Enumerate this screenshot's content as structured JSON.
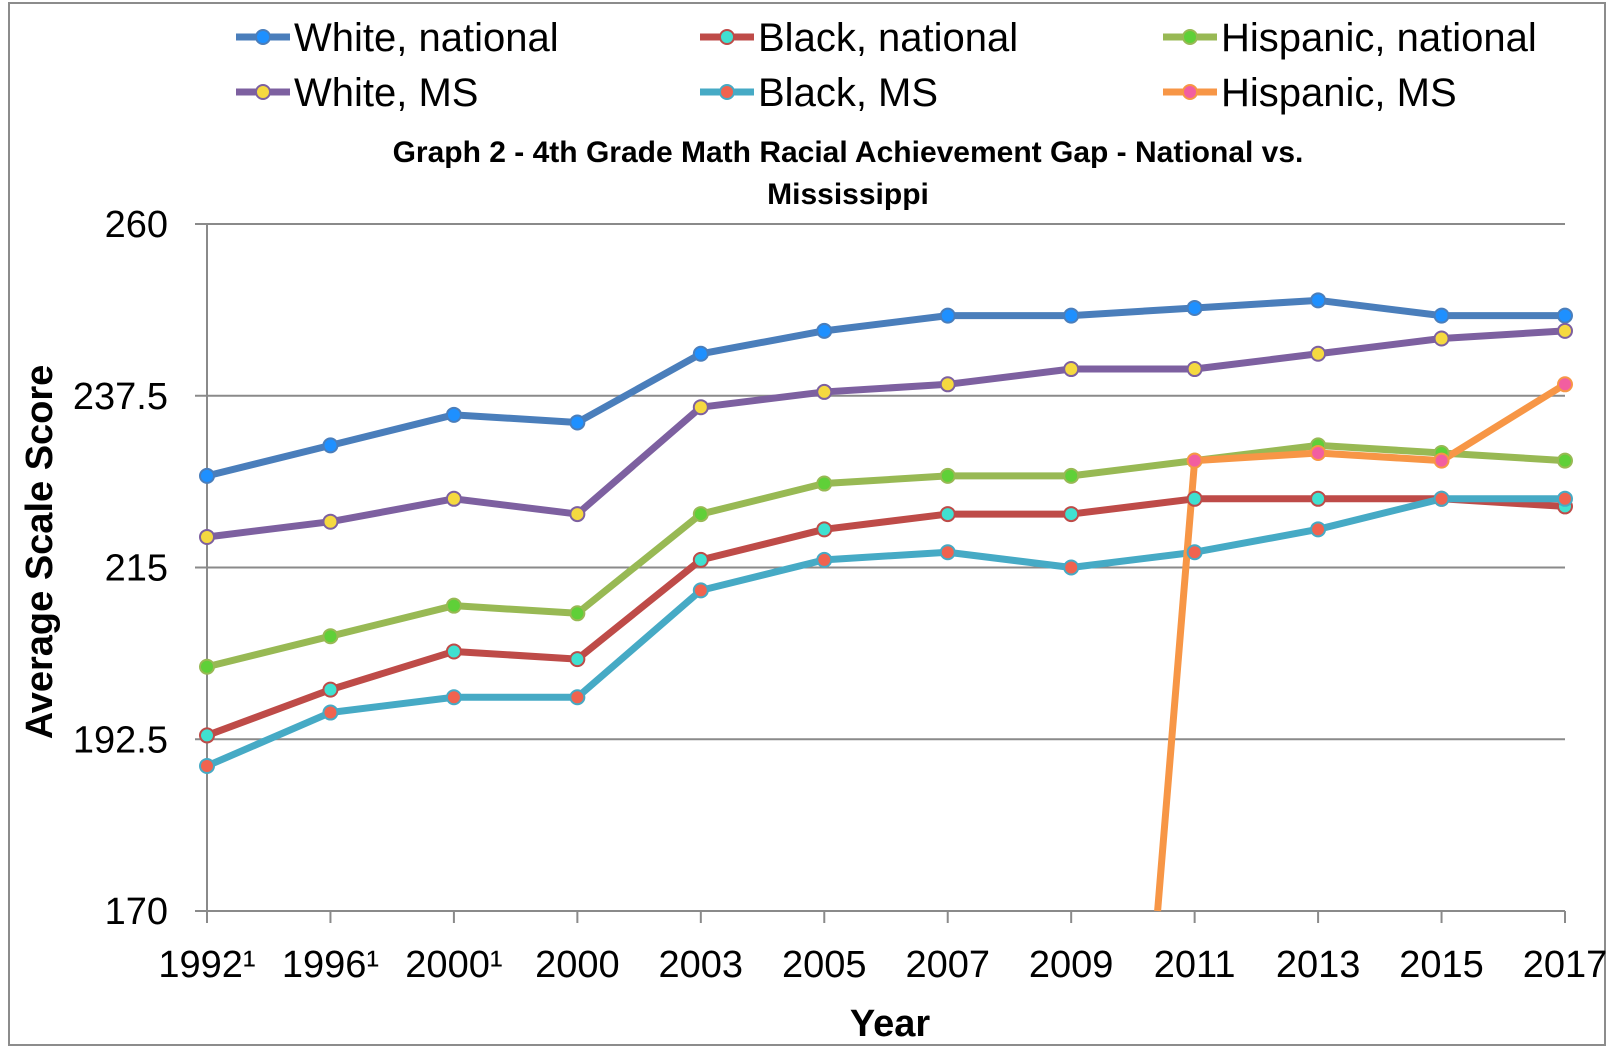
{
  "chart_data": {
    "type": "line",
    "title_line1": "Graph 2 - 4th Grade Math Racial Achievement Gap - National vs.",
    "title_line2": "Mississippi",
    "xlabel": "Year",
    "ylabel": "Average Scale Score",
    "categories": [
      "1992¹",
      "1996¹",
      "2000¹",
      "2000",
      "2003",
      "2005",
      "2007",
      "2009",
      "2011",
      "2013",
      "2015",
      "2017"
    ],
    "ylim": [
      170,
      260
    ],
    "yticks": [
      "170",
      "192.5",
      "215",
      "237.5",
      "260"
    ],
    "ytick_values": [
      170,
      192.5,
      215,
      237.5,
      260
    ],
    "grid": "horizontal",
    "legend_position": "top",
    "series": [
      {
        "name": "White, national",
        "line_color": "#4a7ebb",
        "marker_color": "#1e90ff",
        "values": [
          227,
          231,
          235,
          234,
          243,
          246,
          248,
          248,
          249,
          250,
          248,
          248
        ]
      },
      {
        "name": "Black, national",
        "line_color": "#be4b48",
        "marker_color": "#40e0d0",
        "values": [
          193,
          199,
          204,
          203,
          216,
          220,
          222,
          222,
          224,
          224,
          224,
          223
        ]
      },
      {
        "name": "Hispanic, national",
        "line_color": "#98b954",
        "marker_color": "#5fd038",
        "values": [
          202,
          206,
          210,
          209,
          222,
          226,
          227,
          227,
          229,
          231,
          230,
          229
        ]
      },
      {
        "name": "White, MS",
        "line_color": "#7d60a0",
        "marker_color": "#f5d940",
        "values": [
          219,
          221,
          224,
          222,
          236,
          238,
          239,
          241,
          241,
          243,
          245,
          246
        ]
      },
      {
        "name": "Black, MS",
        "line_color": "#46aac5",
        "marker_color": "#f0634f",
        "values": [
          189,
          196,
          198,
          198,
          212,
          216,
          217,
          215,
          217,
          220,
          224,
          224
        ]
      },
      {
        "name": "Hispanic, MS",
        "line_color": "#f79646",
        "marker_color": "#f25ea0",
        "values": [
          null,
          null,
          null,
          null,
          null,
          null,
          null,
          null,
          229,
          230,
          229,
          239
        ],
        "drop_line_from_x": 7.7
      }
    ]
  }
}
